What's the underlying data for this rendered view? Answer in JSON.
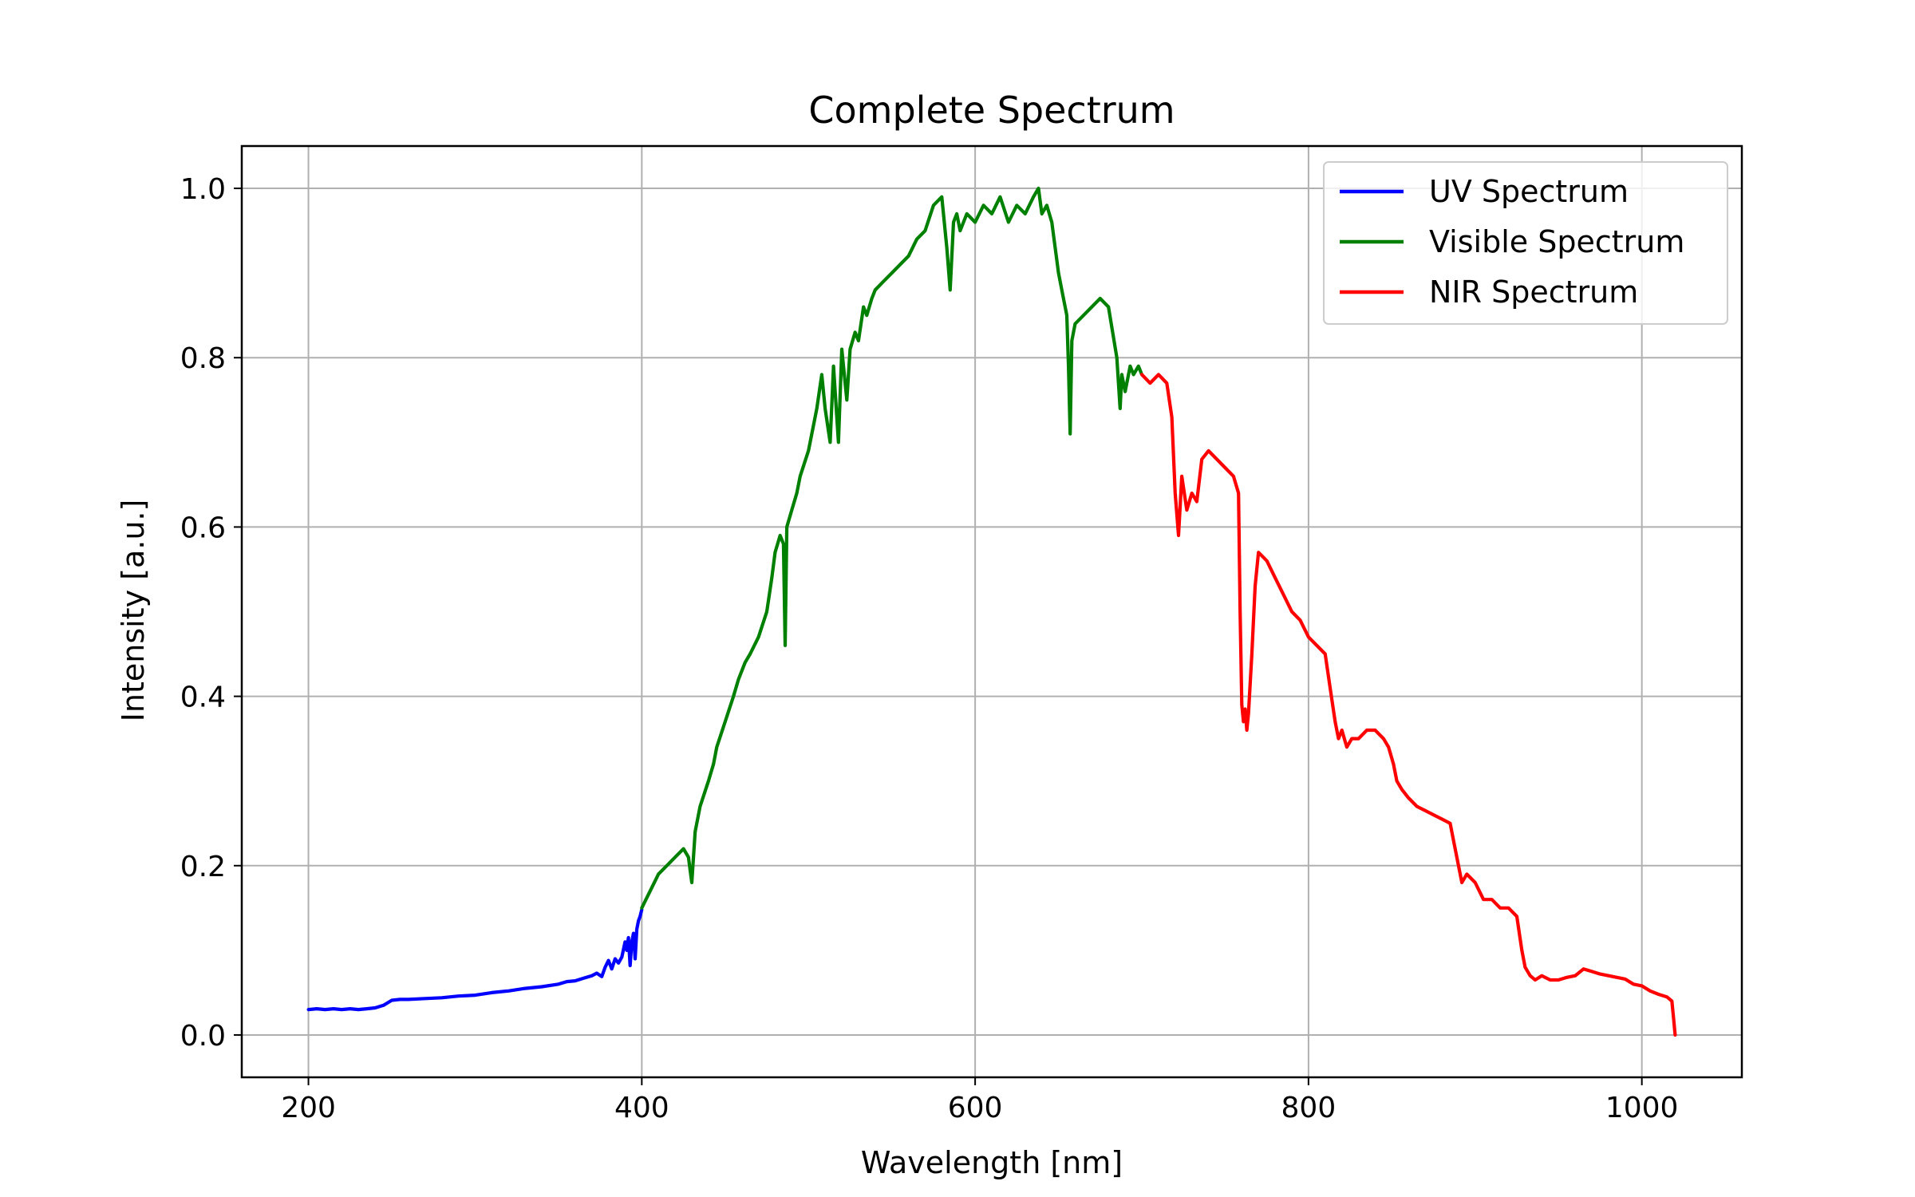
{
  "chart_data": {
    "type": "line",
    "title": "Complete Spectrum",
    "xlabel": "Wavelength [nm]",
    "ylabel": "Intensity [a.u.]",
    "xlim": [
      160,
      1060
    ],
    "ylim": [
      -0.05,
      1.05
    ],
    "xticks": [
      200,
      400,
      600,
      800,
      1000
    ],
    "xtick_labels": [
      "200",
      "400",
      "600",
      "800",
      "1000"
    ],
    "yticks": [
      0.0,
      0.2,
      0.4,
      0.6,
      0.8,
      1.0
    ],
    "ytick_labels": [
      "0.0",
      "0.2",
      "0.4",
      "0.6",
      "0.8",
      "1.0"
    ],
    "grid": true,
    "legend_position": "top-right",
    "series": [
      {
        "name": "UV Spectrum",
        "color": "#0000ff",
        "x": [
          200,
          205,
          210,
          215,
          220,
          225,
          230,
          235,
          240,
          245,
          250,
          255,
          260,
          270,
          280,
          290,
          300,
          310,
          320,
          330,
          340,
          350,
          355,
          360,
          365,
          370,
          373,
          376,
          378,
          380,
          382,
          384,
          386,
          388,
          390,
          391,
          392,
          393,
          394,
          395,
          396,
          397,
          398,
          399,
          400
        ],
        "values": [
          0.03,
          0.031,
          0.03,
          0.031,
          0.03,
          0.031,
          0.03,
          0.031,
          0.032,
          0.035,
          0.041,
          0.042,
          0.042,
          0.043,
          0.044,
          0.046,
          0.047,
          0.05,
          0.052,
          0.055,
          0.057,
          0.06,
          0.063,
          0.064,
          0.067,
          0.07,
          0.073,
          0.069,
          0.08,
          0.088,
          0.078,
          0.09,
          0.085,
          0.092,
          0.11,
          0.1,
          0.115,
          0.082,
          0.11,
          0.12,
          0.09,
          0.125,
          0.135,
          0.14,
          0.148
        ]
      },
      {
        "name": "Visible Spectrum",
        "color": "#008000",
        "x": [
          400,
          405,
          410,
          415,
          420,
          425,
          428,
          430,
          432,
          435,
          440,
          443,
          445,
          450,
          455,
          458,
          462,
          465,
          470,
          475,
          478,
          480,
          483,
          485,
          486,
          487,
          490,
          493,
          495,
          500,
          505,
          508,
          510,
          513,
          515,
          518,
          520,
          523,
          525,
          528,
          530,
          533,
          535,
          538,
          540,
          545,
          550,
          555,
          560,
          565,
          570,
          575,
          580,
          583,
          585,
          587,
          589,
          591,
          595,
          600,
          605,
          610,
          615,
          620,
          625,
          630,
          635,
          638,
          640,
          643,
          646,
          650,
          653,
          655,
          656,
          657,
          658,
          660,
          665,
          670,
          675,
          680,
          685,
          687,
          688,
          690,
          693,
          695,
          698,
          700
        ],
        "values": [
          0.15,
          0.17,
          0.19,
          0.2,
          0.21,
          0.22,
          0.21,
          0.18,
          0.24,
          0.27,
          0.3,
          0.32,
          0.34,
          0.37,
          0.4,
          0.42,
          0.44,
          0.45,
          0.47,
          0.5,
          0.54,
          0.57,
          0.59,
          0.58,
          0.46,
          0.6,
          0.62,
          0.64,
          0.66,
          0.69,
          0.74,
          0.78,
          0.74,
          0.7,
          0.79,
          0.7,
          0.81,
          0.75,
          0.81,
          0.83,
          0.82,
          0.86,
          0.85,
          0.87,
          0.88,
          0.89,
          0.9,
          0.91,
          0.92,
          0.94,
          0.95,
          0.98,
          0.99,
          0.93,
          0.88,
          0.96,
          0.97,
          0.95,
          0.97,
          0.96,
          0.98,
          0.97,
          0.99,
          0.96,
          0.98,
          0.97,
          0.99,
          1.0,
          0.97,
          0.98,
          0.96,
          0.9,
          0.87,
          0.85,
          0.79,
          0.71,
          0.82,
          0.84,
          0.85,
          0.86,
          0.87,
          0.86,
          0.8,
          0.74,
          0.78,
          0.76,
          0.79,
          0.78,
          0.79,
          0.78
        ]
      },
      {
        "name": "NIR Spectrum",
        "color": "#ff0000",
        "x": [
          700,
          705,
          710,
          715,
          718,
          720,
          722,
          724,
          727,
          730,
          733,
          736,
          740,
          745,
          750,
          755,
          758,
          759,
          760,
          761,
          762,
          763,
          764,
          766,
          768,
          770,
          775,
          780,
          785,
          790,
          795,
          800,
          805,
          810,
          813,
          816,
          818,
          820,
          823,
          826,
          830,
          835,
          840,
          845,
          848,
          851,
          853,
          856,
          860,
          865,
          870,
          875,
          880,
          885,
          888,
          890,
          892,
          895,
          900,
          905,
          910,
          915,
          920,
          925,
          928,
          930,
          933,
          936,
          940,
          945,
          950,
          955,
          960,
          965,
          970,
          975,
          980,
          985,
          990,
          995,
          1000,
          1005,
          1010,
          1015,
          1018,
          1019,
          1020
        ],
        "values": [
          0.78,
          0.77,
          0.78,
          0.77,
          0.73,
          0.64,
          0.59,
          0.66,
          0.62,
          0.64,
          0.63,
          0.68,
          0.69,
          0.68,
          0.67,
          0.66,
          0.64,
          0.5,
          0.39,
          0.37,
          0.385,
          0.36,
          0.38,
          0.45,
          0.53,
          0.57,
          0.56,
          0.54,
          0.52,
          0.5,
          0.49,
          0.47,
          0.46,
          0.45,
          0.41,
          0.37,
          0.35,
          0.36,
          0.34,
          0.35,
          0.35,
          0.36,
          0.36,
          0.35,
          0.34,
          0.32,
          0.3,
          0.29,
          0.28,
          0.27,
          0.265,
          0.26,
          0.255,
          0.25,
          0.22,
          0.2,
          0.18,
          0.19,
          0.18,
          0.16,
          0.16,
          0.15,
          0.15,
          0.14,
          0.1,
          0.08,
          0.07,
          0.065,
          0.07,
          0.065,
          0.065,
          0.068,
          0.07,
          0.078,
          0.075,
          0.072,
          0.07,
          0.068,
          0.066,
          0.06,
          0.058,
          0.052,
          0.048,
          0.045,
          0.04,
          0.02,
          0.0
        ]
      }
    ]
  }
}
